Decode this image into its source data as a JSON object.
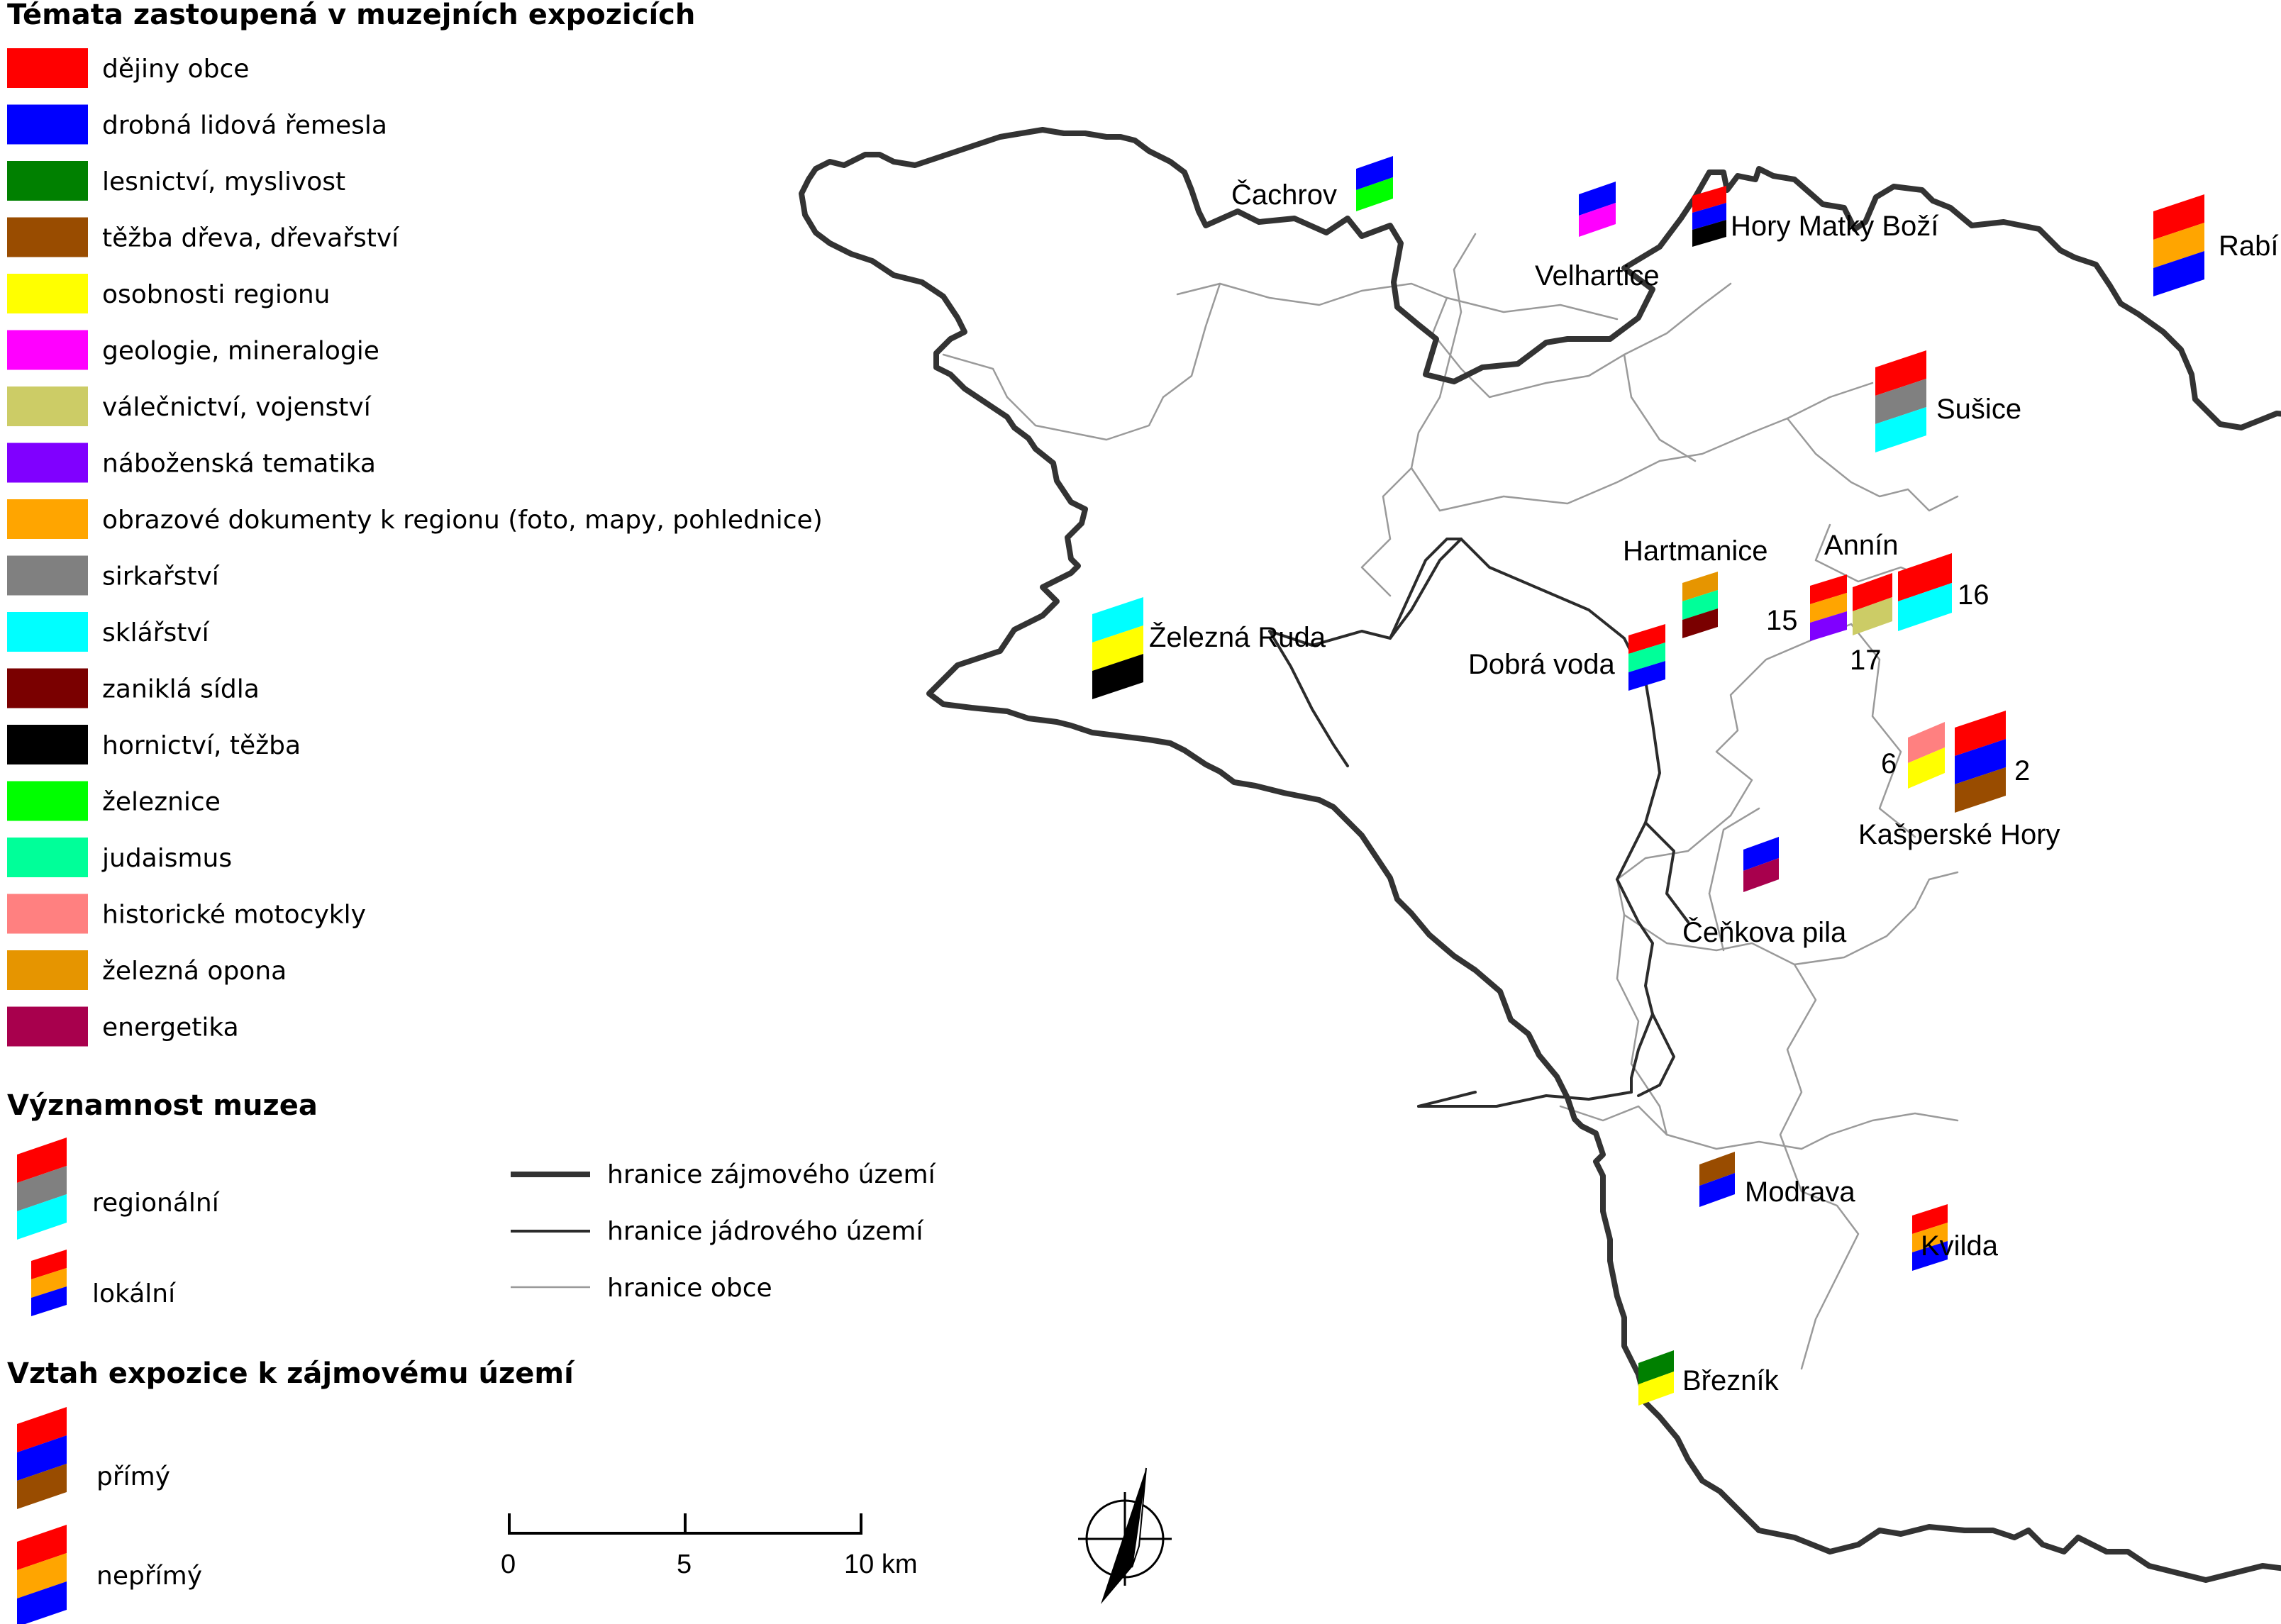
{
  "legend": {
    "themes_title": "Témata zastoupená v muzejních expozicích",
    "themes": [
      {
        "label": "dějiny obce",
        "color": "#ff0000"
      },
      {
        "label": "drobná lidová řemesla",
        "color": "#0000ff"
      },
      {
        "label": "lesnictví, myslivost",
        "color": "#008000"
      },
      {
        "label": "těžba dřeva, dřevařství",
        "color": "#994c00"
      },
      {
        "label": "osobnosti regionu",
        "color": "#ffff00"
      },
      {
        "label": "geologie, mineralogie",
        "color": "#ff00ff"
      },
      {
        "label": "válečnictví, vojenství",
        "color": "#cccc66"
      },
      {
        "label": "náboženská tematika",
        "color": "#8000ff"
      },
      {
        "label": "obrazové dokumenty k regionu (foto, mapy, pohlednice)",
        "color": "#ffa500"
      },
      {
        "label": "sirkařství",
        "color": "#808080"
      },
      {
        "label": "sklářství",
        "color": "#00ffff"
      },
      {
        "label": "zaniklá sídla",
        "color": "#7a0000"
      },
      {
        "label": "hornictví, těžba",
        "color": "#000000"
      },
      {
        "label": "železnice",
        "color": "#00ff00"
      },
      {
        "label": "judaismus",
        "color": "#00ff99"
      },
      {
        "label": "historické motocykly",
        "color": "#ff8080"
      },
      {
        "label": "železná opona",
        "color": "#e69500"
      },
      {
        "label": "energetika",
        "color": "#a8004d"
      }
    ],
    "significance_title": "Významnost muzea",
    "significance": [
      {
        "label": "regionální",
        "colors": [
          "#ff0000",
          "#808080",
          "#00ffff"
        ]
      },
      {
        "label": "lokální",
        "colors": [
          "#ff0000",
          "#ffa500",
          "#0000ff"
        ]
      }
    ],
    "relation_title": "Vztah expozice k zájmovému území",
    "relation": [
      {
        "label": "přímý",
        "colors": [
          "#ff0000",
          "#0000ff",
          "#994c00"
        ]
      },
      {
        "label": "nepřímý",
        "colors": [
          "#ff0000",
          "#ffa500",
          "#0000ff"
        ]
      }
    ],
    "boundaries": [
      {
        "label": "hranice zájmového území",
        "style": "thick"
      },
      {
        "label": "hranice jádrového území",
        "style": "medium"
      },
      {
        "label": "hranice obce",
        "style": "thin"
      }
    ]
  },
  "scale_bar": {
    "labels": [
      "0",
      "5",
      "10 km"
    ]
  },
  "places": [
    {
      "name": "Čachrov"
    },
    {
      "name": "Velhartice"
    },
    {
      "name": "Hory Matky Boží"
    },
    {
      "name": "Rabí"
    },
    {
      "name": "Sušice"
    },
    {
      "name": "Železná Ruda"
    },
    {
      "name": "Hartmanice"
    },
    {
      "name": "Annín"
    },
    {
      "name": "Dobrá voda"
    },
    {
      "name": "Kašperské Hory"
    },
    {
      "name": "Čeňkova pila"
    },
    {
      "name": "Modrava"
    },
    {
      "name": "Kvilda"
    },
    {
      "name": "Březník"
    }
  ],
  "museum_numbers": [
    "15",
    "16",
    "17",
    "6",
    "2"
  ],
  "symbols": [
    {
      "place": "Čachrov",
      "colors": [
        "#0000ff",
        "#00ff00"
      ]
    },
    {
      "place": "Velhartice",
      "colors": [
        "#0000ff",
        "#ff00ff"
      ]
    },
    {
      "place": "Hory Matky Boží",
      "colors": [
        "#ff0000",
        "#0000ff",
        "#000000"
      ]
    },
    {
      "place": "Rabí",
      "colors": [
        "#ff0000",
        "#ffa500",
        "#0000ff"
      ]
    },
    {
      "place": "Sušice",
      "colors": [
        "#ff0000",
        "#808080",
        "#00ffff"
      ]
    },
    {
      "place": "Železná Ruda",
      "colors": [
        "#00ffff",
        "#ffff00",
        "#000000"
      ]
    },
    {
      "place": "Hartmanice",
      "colors": [
        "#e69500",
        "#00ff99",
        "#7a0000"
      ]
    },
    {
      "place": "Dobrá voda",
      "colors": [
        "#ff0000",
        "#00ff99",
        "#0000ff"
      ]
    },
    {
      "place": "15",
      "colors": [
        "#ff0000",
        "#ffa500",
        "#8000ff"
      ]
    },
    {
      "place": "17",
      "colors": [
        "#ff0000",
        "#cccc66"
      ]
    },
    {
      "place": "16",
      "colors": [
        "#ff0000",
        "#00ffff"
      ]
    },
    {
      "place": "6",
      "colors": [
        "#ff8080",
        "#ffff00"
      ]
    },
    {
      "place": "2",
      "colors": [
        "#ff0000",
        "#0000ff",
        "#994c00"
      ]
    },
    {
      "place": "Čeňkova pila",
      "colors": [
        "#0000ff",
        "#a8004d"
      ]
    },
    {
      "place": "Modrava",
      "colors": [
        "#994c00",
        "#0000ff"
      ]
    },
    {
      "place": "Kvilda",
      "colors": [
        "#ff0000",
        "#ffa500",
        "#0000ff"
      ]
    },
    {
      "place": "Březník",
      "colors": [
        "#008000",
        "#ffff00"
      ]
    }
  ]
}
